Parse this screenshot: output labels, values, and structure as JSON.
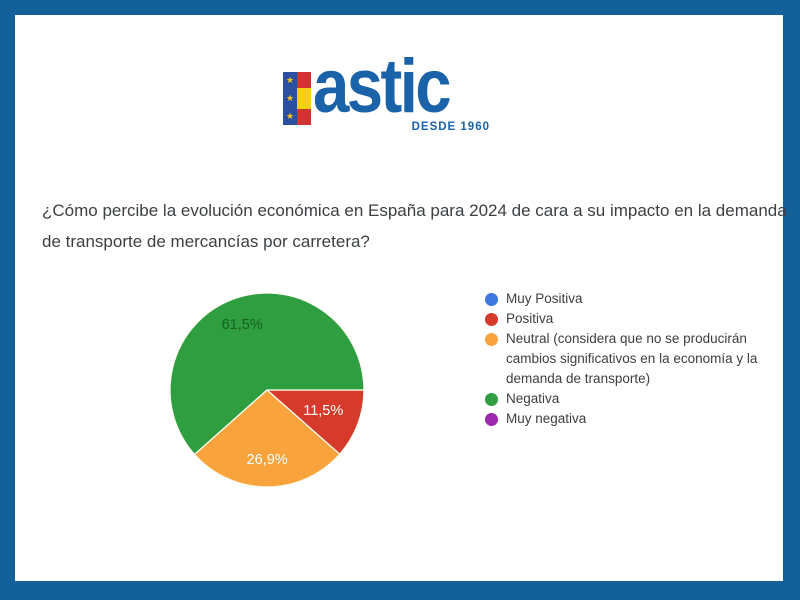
{
  "page": {
    "frame_color": "#14609B",
    "background": "#FFFFFF"
  },
  "logo": {
    "brand": "astic",
    "tagline": "DESDE 1960",
    "brand_color": "#1A63A8",
    "flag_colors": {
      "eu_blue": "#2C4FA0",
      "star_yellow": "#F2C71D",
      "spain_red": "#D13430",
      "spain_yellow": "#F7CF17"
    }
  },
  "question": {
    "text": "¿Cómo percibe la evolución económica en España para 2024 de cara a su impacto en la demanda de transporte de mercancías por carretera?"
  },
  "chart_data": {
    "type": "pie",
    "title": "",
    "legend_position": "right",
    "start_angle_deg": 0,
    "slices": [
      {
        "label": "Muy Positiva",
        "value": 0,
        "percent_display": "",
        "color": "#3E78DF",
        "label_color": "#FFFFFF"
      },
      {
        "label": "Positiva",
        "value": 11.5,
        "percent_display": "11,5%",
        "color": "#D63A2B",
        "label_color": "#FFFFFF"
      },
      {
        "label": "Neutral (considera que no se producirán cambios significativos en la economía y la demanda de transporte)",
        "value": 26.9,
        "percent_display": "26,9%",
        "color": "#F8A33C",
        "label_color": "#FFFFFF"
      },
      {
        "label": "Negativa",
        "value": 61.5,
        "percent_display": "61,5%",
        "color": "#2F9E41",
        "label_color": "#14611C"
      },
      {
        "label": "Muy negativa",
        "value": 0,
        "percent_display": "",
        "color": "#9C28AD",
        "label_color": "#FFFFFF"
      }
    ]
  }
}
